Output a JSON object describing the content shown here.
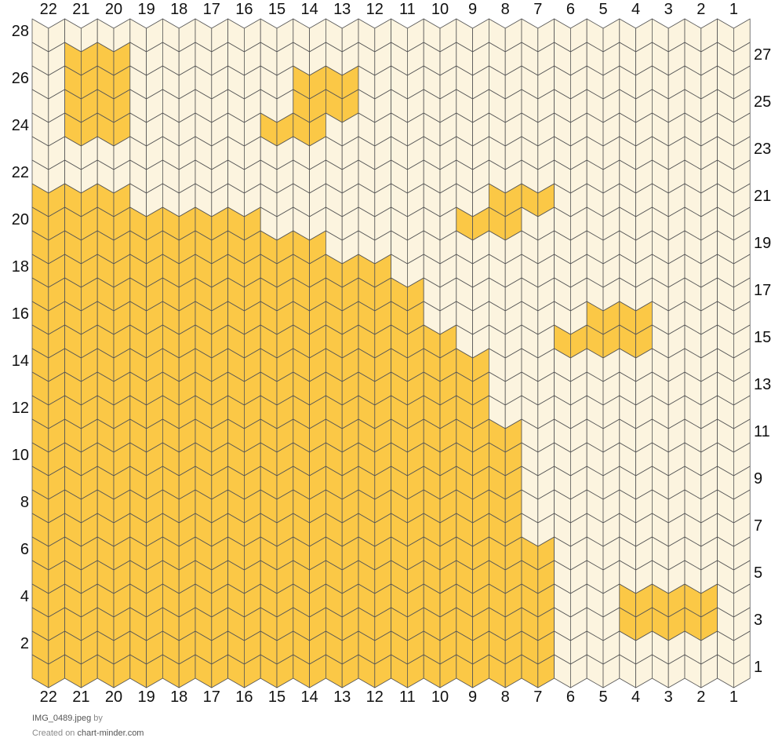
{
  "chart_data": {
    "type": "knitting-chart",
    "columns": 22,
    "rows": 28,
    "column_numbers": [
      22,
      21,
      20,
      19,
      18,
      17,
      16,
      15,
      14,
      13,
      12,
      11,
      10,
      9,
      8,
      7,
      6,
      5,
      4,
      3,
      2,
      1
    ],
    "left_row_numbers": [
      28,
      26,
      24,
      22,
      20,
      18,
      16,
      14,
      12,
      10,
      8,
      6,
      4,
      2
    ],
    "right_row_numbers": [
      27,
      25,
      23,
      21,
      19,
      17,
      15,
      13,
      11,
      9,
      7,
      5,
      3,
      1
    ],
    "colors": {
      "cream": "#fcf4df",
      "yellow": "#fbc846",
      "outline": "#555555"
    },
    "legend": {
      "C": "cream",
      "Y": "yellow"
    },
    "grid_rows_top_to_bottom": [
      "CCCCCCCCCCCCCCCCCCCCCC",
      "CYYCCCCCCCCCCCCCCCCCCC",
      "CYYCCCCCYYCCCCCCCCCCCC",
      "CYYCCCCCYYCCCCCCCCCCCC",
      "CYYCCCCYYCCCCCCCCCCCCC",
      "CCCCCCCCCCCCCCCCCCCCCC",
      "CCCCCCCCCCCCCCCCCCCCCC",
      "YYYCCCCCCCCCCCYYCCCCCC",
      "YYYYYYYCCCCCCYYCCCCCCC",
      "YYYYYYYYYCCCCCCCCCCCCC",
      "YYYYYYYYYYYCCCCCCCCCCC",
      "YYYYYYYYYYYYCCCCCCCCCC",
      "YYYYYYYYYYYYCCCCCYYCCC",
      "YYYYYYYYYYYYYCCCYYYCCC",
      "YYYYYYYYYYYYYYCCCCCCCC",
      "YYYYYYYYYYYYYYCCCCCCCC",
      "YYYYYYYYYYYYYYCCCCCCCC",
      "YYYYYYYYYYYYYYYCCCCCCC",
      "YYYYYYYYYYYYYYYCCCCCCC",
      "YYYYYYYYYYYYYYYCCCCCCC",
      "YYYYYYYYYYYYYYYCCCCCCC",
      "YYYYYYYYYYYYYYYCCCCCCC",
      "YYYYYYYYYYYYYYYYCCCCCC",
      "YYYYYYYYYYYYYYYYCCCCCC",
      "YYYYYYYYYYYYYYYYCCYYYC",
      "YYYYYYYYYYYYYYYYCCYYYC",
      "YYYYYYYYYYYYYYYYCCCCCC",
      "YYYYYYYYYYYYYYYYCCCCCC"
    ]
  },
  "footer": {
    "filename": "IMG_0489.jpeg",
    "by": "by",
    "created_on": "Created on",
    "site": "chart-minder.com"
  }
}
